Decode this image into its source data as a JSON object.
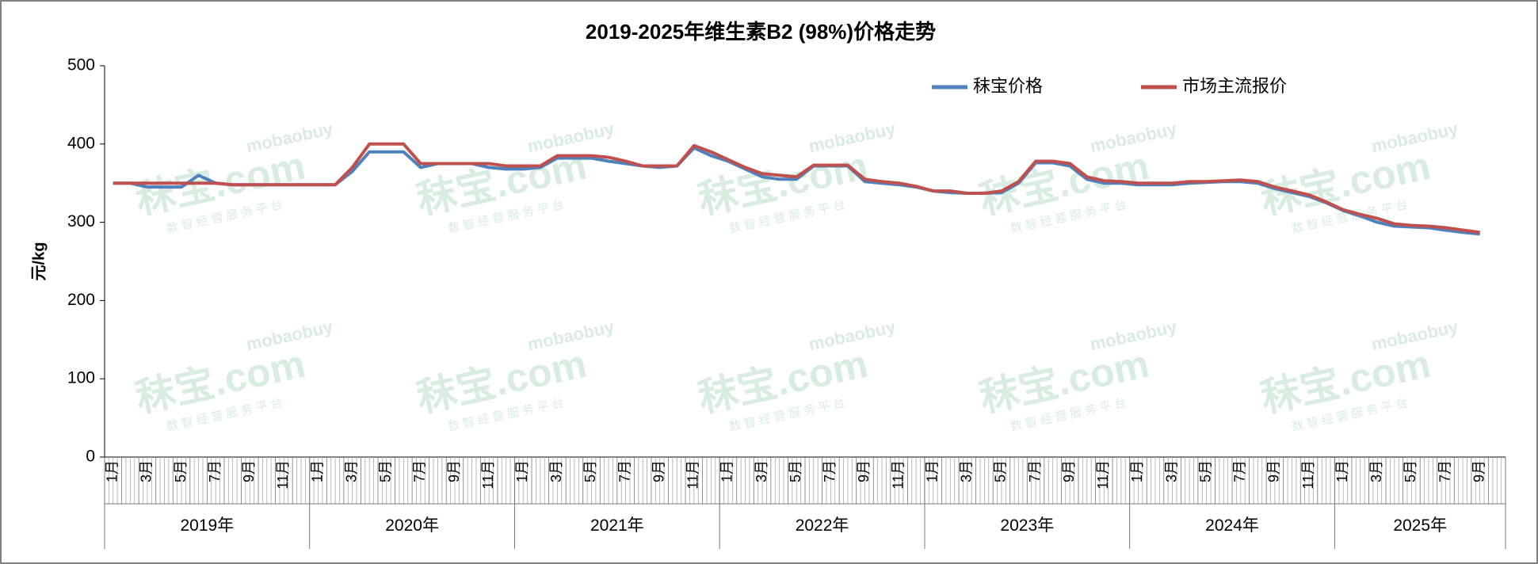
{
  "chart_data": {
    "type": "line",
    "title": "2019-2025年维生素B2 (98%)价格走势",
    "y_label": "元/kg",
    "watermark": [
      "mobaobuy",
      "秣宝.com",
      "数 智 经 营 服 务 平 台"
    ],
    "categories": [
      "1月",
      null,
      "3月",
      null,
      "5月",
      null,
      "7月",
      null,
      "9月",
      null,
      "11月",
      null,
      "1月",
      null,
      "3月",
      null,
      "5月",
      null,
      "7月",
      null,
      "9月",
      null,
      "11月",
      null,
      "1月",
      null,
      "3月",
      null,
      "5月",
      null,
      "7月",
      null,
      "9月",
      null,
      "11月",
      null,
      "1月",
      null,
      "3月",
      null,
      "5月",
      null,
      "7月",
      null,
      "9月",
      null,
      "11月",
      null,
      "1月",
      null,
      "3月",
      null,
      "5月",
      null,
      "7月",
      null,
      "9月",
      null,
      "11月",
      null,
      "1月",
      null,
      "3月",
      null,
      "5月",
      null,
      "7月",
      null,
      "9月",
      null,
      "11月",
      null,
      "1月",
      null,
      "3月",
      null,
      "5月",
      null,
      "7月",
      null,
      "9月",
      null
    ],
    "x_groups": [
      "2019年",
      "2020年",
      "2021年",
      "2022年",
      "2023年",
      "2024年",
      "2025年"
    ],
    "series": [
      {
        "name": "秣宝价格",
        "color": "#4f81bd",
        "values": [
          350,
          350,
          345,
          345,
          345,
          360,
          350,
          348,
          348,
          348,
          348,
          348,
          348,
          348,
          365,
          390,
          390,
          390,
          370,
          375,
          375,
          375,
          370,
          368,
          368,
          370,
          382,
          382,
          382,
          378,
          375,
          372,
          370,
          372,
          395,
          385,
          378,
          368,
          358,
          355,
          355,
          372,
          372,
          372,
          352,
          350,
          348,
          345,
          340,
          338,
          337,
          337,
          338,
          350,
          376,
          376,
          372,
          355,
          350,
          350,
          348,
          348,
          348,
          350,
          351,
          352,
          352,
          350,
          343,
          338,
          333,
          325,
          315,
          308,
          300,
          295,
          294,
          293,
          290,
          287,
          285,
          null
        ]
      },
      {
        "name": "市场主流报价",
        "color": "#c0504d",
        "values": [
          350,
          350,
          350,
          350,
          350,
          350,
          350,
          348,
          348,
          348,
          348,
          348,
          348,
          348,
          370,
          400,
          400,
          400,
          375,
          375,
          375,
          375,
          375,
          372,
          372,
          372,
          385,
          385,
          385,
          383,
          378,
          372,
          372,
          372,
          398,
          390,
          380,
          370,
          362,
          360,
          358,
          373,
          373,
          373,
          355,
          352,
          350,
          346,
          340,
          340,
          337,
          337,
          340,
          352,
          378,
          378,
          375,
          358,
          353,
          352,
          350,
          350,
          350,
          352,
          352,
          353,
          354,
          352,
          345,
          340,
          335,
          326,
          316,
          310,
          305,
          298,
          296,
          295,
          293,
          290,
          287,
          null
        ]
      }
    ],
    "ylim": [
      0,
      500
    ],
    "yticks": [
      0,
      100,
      200,
      300,
      400,
      500
    ],
    "grid": false,
    "legend": "top-right"
  }
}
